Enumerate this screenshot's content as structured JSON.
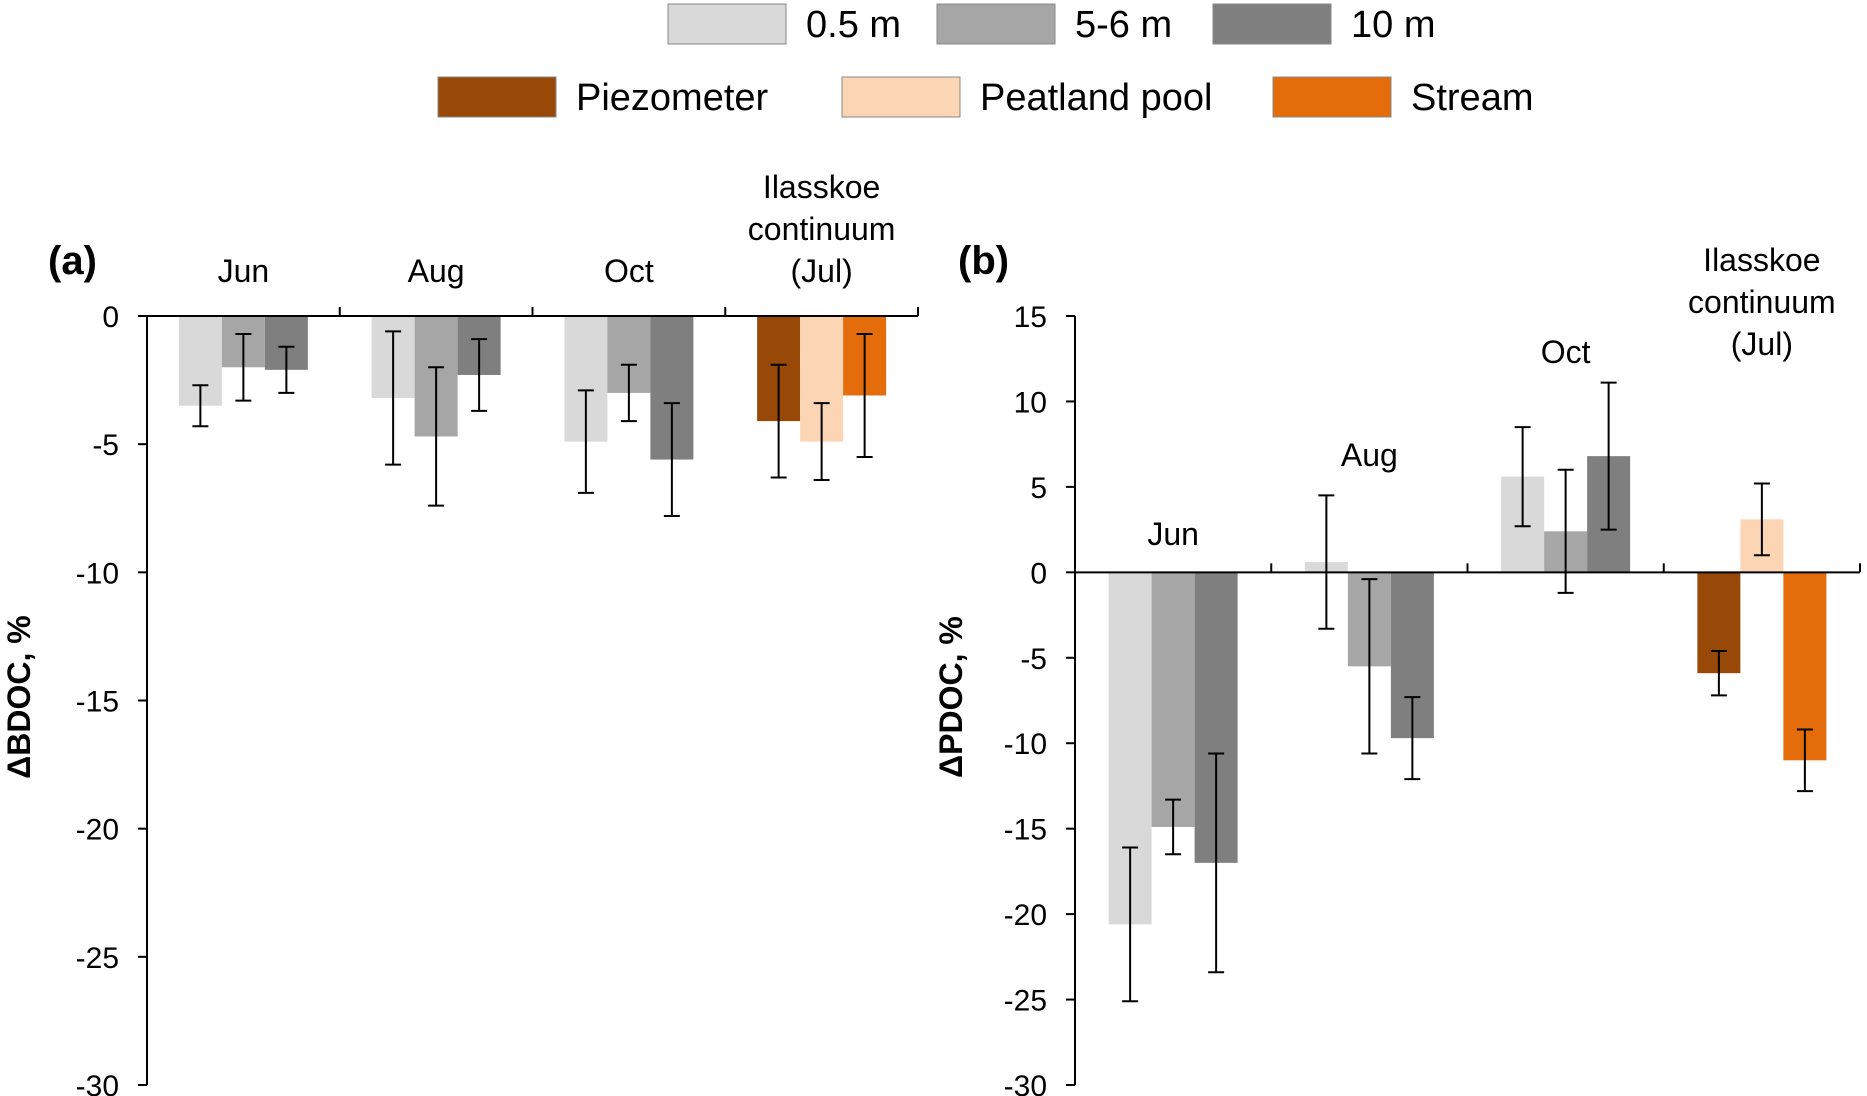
{
  "legend": {
    "row1": [
      {
        "label": "0.5 m",
        "color": "#d9d9d9"
      },
      {
        "label": "5-6 m",
        "color": "#a6a6a6"
      },
      {
        "label": "10 m",
        "color": "#7f7f7f"
      }
    ],
    "row2": [
      {
        "label": "Piezometer",
        "color": "#984807"
      },
      {
        "label": "Peatland pool",
        "color": "#fcd5b5"
      },
      {
        "label": "Stream",
        "color": "#e46c0a"
      }
    ]
  },
  "chart_data": [
    {
      "type": "bar",
      "panel_label": "(a)",
      "ylabel": "ΔBDOC, %",
      "ylim": [
        -30,
        0
      ],
      "yticks": [
        0,
        -5,
        -10,
        -15,
        -20,
        -25,
        -30
      ],
      "ytick_labels": [
        "0",
        "-5",
        "-10",
        "-15",
        "-20",
        "-25",
        "-30"
      ],
      "groups": [
        {
          "label": [
            "Jun"
          ],
          "bars": [
            {
              "series": "0.5 m",
              "value": -3.5,
              "err": 0.8
            },
            {
              "series": "5-6 m",
              "value": -2.0,
              "err": 1.3
            },
            {
              "series": "10 m",
              "value": -2.1,
              "err": 0.9
            }
          ]
        },
        {
          "label": [
            "Aug"
          ],
          "bars": [
            {
              "series": "0.5 m",
              "value": -3.2,
              "err": 2.6
            },
            {
              "series": "5-6 m",
              "value": -4.7,
              "err": 2.7
            },
            {
              "series": "10 m",
              "value": -2.3,
              "err": 1.4
            }
          ]
        },
        {
          "label": [
            "Oct"
          ],
          "bars": [
            {
              "series": "0.5 m",
              "value": -4.9,
              "err": 2.0
            },
            {
              "series": "5-6 m",
              "value": -3.0,
              "err": 1.1
            },
            {
              "series": "10 m",
              "value": -5.6,
              "err": 2.2
            }
          ]
        },
        {
          "label": [
            "Ilasskoe",
            "continuum",
            "(Jul)"
          ],
          "bars": [
            {
              "series": "Piezometer",
              "value": -4.1,
              "err": 2.2
            },
            {
              "series": "Peatland pool",
              "value": -4.9,
              "err": 1.5
            },
            {
              "series": "Stream",
              "value": -3.1,
              "err": 2.4
            }
          ]
        }
      ]
    },
    {
      "type": "bar",
      "panel_label": "(b)",
      "ylabel": "ΔPDOC, %",
      "ylim": [
        -30,
        15
      ],
      "yticks": [
        15,
        10,
        5,
        0,
        -5,
        -10,
        -15,
        -20,
        -25,
        -30
      ],
      "ytick_labels": [
        "15",
        "10",
        "5",
        "0",
        "-5",
        "-10",
        "-15",
        "-20",
        "-25",
        "-30"
      ],
      "groups": [
        {
          "label": [
            "Jun"
          ],
          "bars": [
            {
              "series": "0.5 m",
              "value": -20.6,
              "err": 4.5
            },
            {
              "series": "5-6 m",
              "value": -14.9,
              "err": 1.6
            },
            {
              "series": "10 m",
              "value": -17.0,
              "err": 6.4
            }
          ]
        },
        {
          "label": [
            "Aug"
          ],
          "bars": [
            {
              "series": "0.5 m",
              "value": 0.6,
              "err": 3.9
            },
            {
              "series": "5-6 m",
              "value": -5.5,
              "err": 5.1
            },
            {
              "series": "10 m",
              "value": -9.7,
              "err": 2.4
            }
          ]
        },
        {
          "label": [
            "Oct"
          ],
          "bars": [
            {
              "series": "0.5 m",
              "value": 5.6,
              "err": 2.9
            },
            {
              "series": "5-6 m",
              "value": 2.4,
              "err": 3.6
            },
            {
              "series": "10 m",
              "value": 6.8,
              "err": 4.3
            }
          ]
        },
        {
          "label": [
            "Ilasskoe",
            "continuum",
            "(Jul)"
          ],
          "bars": [
            {
              "series": "Piezometer",
              "value": -5.9,
              "err": 1.3
            },
            {
              "series": "Peatland pool",
              "value": 3.1,
              "err": 2.1
            },
            {
              "series": "Stream",
              "value": -11.0,
              "err": 1.8
            }
          ]
        }
      ]
    }
  ]
}
